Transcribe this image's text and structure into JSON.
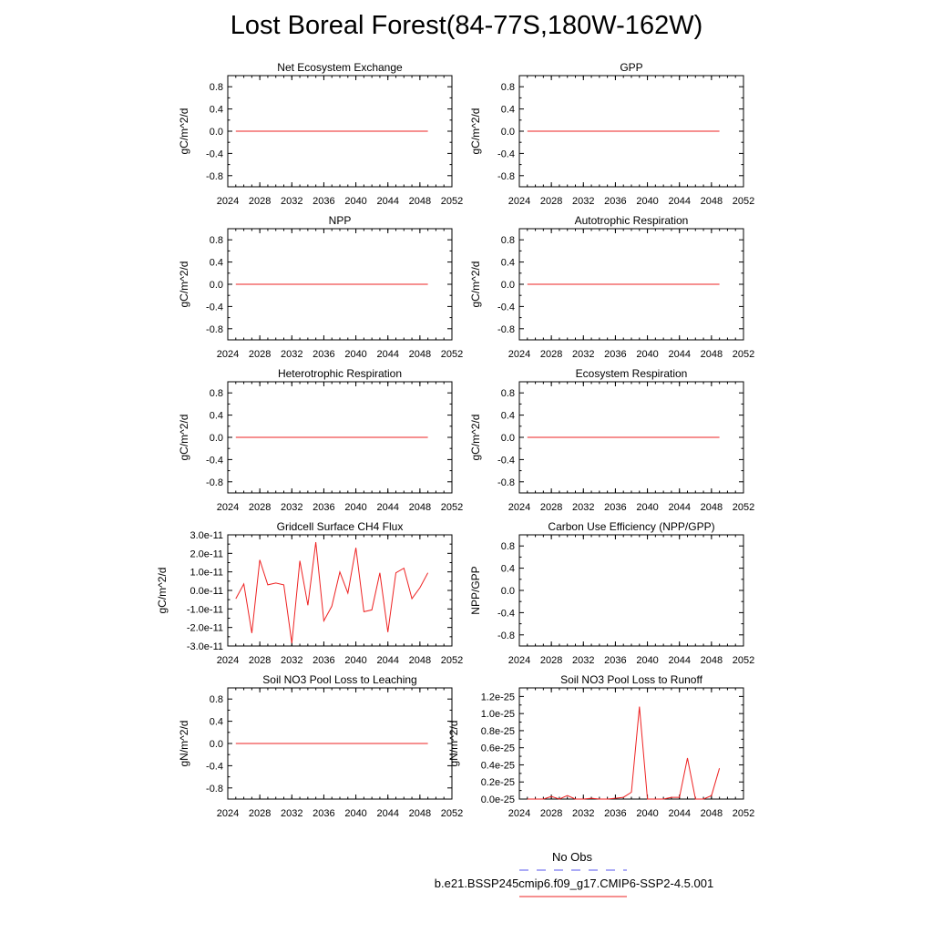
{
  "title": "Lost Boreal Forest(84-77S,180W-162W)",
  "legend": {
    "obs_label": "No Obs",
    "obs_color": "#5555ee",
    "model_label": "b.e21.BSSP245cmip6.f09_g17.CMIP6-SSP2-4.5.001",
    "model_color": "#ee2222"
  },
  "chart_data": [
    {
      "type": "line",
      "title": "Net Ecosystem Exchange",
      "ylabel": "gC/m^2/d",
      "xlim": [
        2024,
        2052
      ],
      "xticks": [
        2024,
        2028,
        2032,
        2036,
        2040,
        2044,
        2048,
        2052
      ],
      "ylim": [
        -1.0,
        1.0
      ],
      "yticks": [
        -0.8,
        -0.4,
        0.0,
        0.4,
        0.8
      ],
      "ytick_labels": [
        "-0.8",
        "-0.4",
        "0.0",
        "0.4",
        "0.8"
      ],
      "series": [
        {
          "x": [
            2025,
            2049
          ],
          "y": [
            0.0,
            0.0
          ]
        }
      ]
    },
    {
      "type": "line",
      "title": "GPP",
      "ylabel": "gC/m^2/d",
      "xlim": [
        2024,
        2052
      ],
      "xticks": [
        2024,
        2028,
        2032,
        2036,
        2040,
        2044,
        2048,
        2052
      ],
      "ylim": [
        -1.0,
        1.0
      ],
      "yticks": [
        -0.8,
        -0.4,
        0.0,
        0.4,
        0.8
      ],
      "ytick_labels": [
        "-0.8",
        "-0.4",
        "0.0",
        "0.4",
        "0.8"
      ],
      "series": [
        {
          "x": [
            2025,
            2049
          ],
          "y": [
            0.0,
            0.0
          ]
        }
      ]
    },
    {
      "type": "line",
      "title": "NPP",
      "ylabel": "gC/m^2/d",
      "xlim": [
        2024,
        2052
      ],
      "xticks": [
        2024,
        2028,
        2032,
        2036,
        2040,
        2044,
        2048,
        2052
      ],
      "ylim": [
        -1.0,
        1.0
      ],
      "yticks": [
        -0.8,
        -0.4,
        0.0,
        0.4,
        0.8
      ],
      "ytick_labels": [
        "-0.8",
        "-0.4",
        "0.0",
        "0.4",
        "0.8"
      ],
      "series": [
        {
          "x": [
            2025,
            2049
          ],
          "y": [
            0.0,
            0.0
          ]
        }
      ]
    },
    {
      "type": "line",
      "title": "Autotrophic Respiration",
      "ylabel": "gC/m^2/d",
      "xlim": [
        2024,
        2052
      ],
      "xticks": [
        2024,
        2028,
        2032,
        2036,
        2040,
        2044,
        2048,
        2052
      ],
      "ylim": [
        -1.0,
        1.0
      ],
      "yticks": [
        -0.8,
        -0.4,
        0.0,
        0.4,
        0.8
      ],
      "ytick_labels": [
        "-0.8",
        "-0.4",
        "0.0",
        "0.4",
        "0.8"
      ],
      "series": [
        {
          "x": [
            2025,
            2049
          ],
          "y": [
            0.0,
            0.0
          ]
        }
      ]
    },
    {
      "type": "line",
      "title": "Heterotrophic Respiration",
      "ylabel": "gC/m^2/d",
      "xlim": [
        2024,
        2052
      ],
      "xticks": [
        2024,
        2028,
        2032,
        2036,
        2040,
        2044,
        2048,
        2052
      ],
      "ylim": [
        -1.0,
        1.0
      ],
      "yticks": [
        -0.8,
        -0.4,
        0.0,
        0.4,
        0.8
      ],
      "ytick_labels": [
        "-0.8",
        "-0.4",
        "0.0",
        "0.4",
        "0.8"
      ],
      "series": [
        {
          "x": [
            2025,
            2049
          ],
          "y": [
            0.0,
            0.0
          ]
        }
      ]
    },
    {
      "type": "line",
      "title": "Ecosystem Respiration",
      "ylabel": "gC/m^2/d",
      "xlim": [
        2024,
        2052
      ],
      "xticks": [
        2024,
        2028,
        2032,
        2036,
        2040,
        2044,
        2048,
        2052
      ],
      "ylim": [
        -1.0,
        1.0
      ],
      "yticks": [
        -0.8,
        -0.4,
        0.0,
        0.4,
        0.8
      ],
      "ytick_labels": [
        "-0.8",
        "-0.4",
        "0.0",
        "0.4",
        "0.8"
      ],
      "series": [
        {
          "x": [
            2025,
            2049
          ],
          "y": [
            0.0,
            0.0
          ]
        }
      ]
    },
    {
      "type": "line",
      "title": "Gridcell Surface CH4 Flux",
      "ylabel": "gC/m^2/d",
      "xlim": [
        2024,
        2052
      ],
      "xticks": [
        2024,
        2028,
        2032,
        2036,
        2040,
        2044,
        2048,
        2052
      ],
      "ylim": [
        -3e-11,
        3e-11
      ],
      "yticks": [
        -3e-11,
        -2e-11,
        -1e-11,
        0,
        1e-11,
        2e-11,
        3e-11
      ],
      "ytick_labels": [
        "-3.0e-11",
        "-2.0e-11",
        "-1.0e-11",
        "0.0e-11",
        "1.0e-11",
        "2.0e-11",
        "3.0e-11"
      ],
      "series": [
        {
          "x": [
            2025,
            2026,
            2027,
            2028,
            2029,
            2030,
            2031,
            2032,
            2033,
            2034,
            2035,
            2036,
            2037,
            2038,
            2039,
            2040,
            2041,
            2042,
            2043,
            2044,
            2045,
            2046,
            2047,
            2048,
            2049
          ],
          "y": [
            -4.5e-12,
            3.5e-12,
            -2.3e-11,
            1.65e-11,
            3e-12,
            4e-12,
            3e-12,
            -2.85e-11,
            1.6e-11,
            -8e-12,
            2.6e-11,
            -1.65e-11,
            -8.5e-12,
            1e-11,
            -1.5e-12,
            2.3e-11,
            -1.15e-11,
            -1.05e-11,
            9.5e-12,
            -2.25e-11,
            9.5e-12,
            1.2e-11,
            -4.5e-12,
            1.5e-12,
            9.5e-12
          ]
        }
      ]
    },
    {
      "type": "line",
      "title": "Carbon Use Efficiency (NPP/GPP)",
      "ylabel": "NPP/GPP",
      "xlim": [
        2024,
        2052
      ],
      "xticks": [
        2024,
        2028,
        2032,
        2036,
        2040,
        2044,
        2048,
        2052
      ],
      "ylim": [
        -1.0,
        1.0
      ],
      "yticks": [
        -0.8,
        -0.4,
        0.0,
        0.4,
        0.8
      ],
      "ytick_labels": [
        "-0.8",
        "-0.4",
        "0.0",
        "0.4",
        "0.8"
      ],
      "series": []
    },
    {
      "type": "line",
      "title": "Soil NO3 Pool Loss to Leaching",
      "ylabel": "gN/m^2/d",
      "xlim": [
        2024,
        2052
      ],
      "xticks": [
        2024,
        2028,
        2032,
        2036,
        2040,
        2044,
        2048,
        2052
      ],
      "ylim": [
        -1.0,
        1.0
      ],
      "yticks": [
        -0.8,
        -0.4,
        0.0,
        0.4,
        0.8
      ],
      "ytick_labels": [
        "-0.8",
        "-0.4",
        "0.0",
        "0.4",
        "0.8"
      ],
      "series": [
        {
          "x": [
            2025,
            2049
          ],
          "y": [
            0.0,
            0.0
          ]
        }
      ]
    },
    {
      "type": "line",
      "title": "Soil NO3 Pool Loss to Runoff",
      "ylabel": "gN/m^2/d",
      "xlim": [
        2024,
        2052
      ],
      "xticks": [
        2024,
        2028,
        2032,
        2036,
        2040,
        2044,
        2048,
        2052
      ],
      "ylim": [
        0,
        1.3e-25
      ],
      "yticks": [
        0,
        2e-26,
        4e-26,
        6e-26,
        8e-26,
        1e-25,
        1.2e-25
      ],
      "ytick_labels": [
        "0.0e-25",
        "0.2e-25",
        "0.4e-25",
        "0.6e-25",
        "0.8e-25",
        "1.0e-25",
        "1.2e-25"
      ],
      "series": [
        {
          "x": [
            2025,
            2026,
            2027,
            2028,
            2029,
            2030,
            2031,
            2032,
            2033,
            2034,
            2035,
            2036,
            2037,
            2038,
            2039,
            2040,
            2041,
            2042,
            2043,
            2044,
            2045,
            2046,
            2047,
            2048,
            2049
          ],
          "y": [
            0,
            0,
            0,
            3e-27,
            0,
            4e-27,
            0,
            0,
            1e-27,
            0,
            0,
            1e-27,
            2e-27,
            8e-27,
            1.08e-25,
            0,
            0,
            0,
            2e-27,
            2e-27,
            4.8e-26,
            0,
            0,
            4e-27,
            3.6e-26
          ]
        }
      ]
    }
  ]
}
